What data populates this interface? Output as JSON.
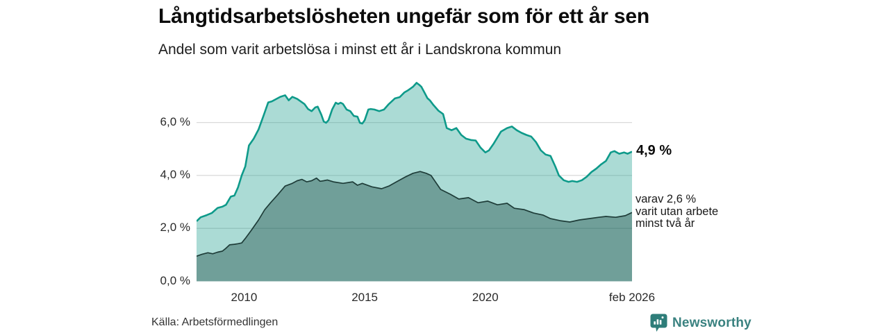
{
  "header": {
    "title": "Långtidsarbetslösheten ungefär som för ett år sen",
    "subtitle": "Andel som varit arbetslösa i minst ett år i Landskrona kommun"
  },
  "annotations": {
    "value_primary": "4,9 %",
    "value_primary_series_value": 4.9,
    "value_secondary_lines": [
      "varav 2,6 %",
      "varit utan arbete",
      "minst två år"
    ],
    "value_secondary_series_value": 2.6
  },
  "footer": {
    "source": "Källa: Arbetsförmedlingen",
    "brand": "Newsworthy"
  },
  "colors": {
    "line_primary": "#0E9A8A",
    "fill_primary": "rgba(22,154,138,0.36)",
    "line_secondary": "#1E3C38",
    "fill_secondary": "rgba(15,61,56,0.38)",
    "gridline": "#D9D9D9",
    "brand_teal": "#2E7D79"
  },
  "chart_data": {
    "type": "area",
    "title": "Långtidsarbetslösheten ungefär som för ett år sen",
    "subtitle": "Andel som varit arbetslösa i minst ett år i Landskrona kommun",
    "unit": "%",
    "grid": "horizontal",
    "legend_position": "right-annotations",
    "x_domain": [
      2008.03,
      2026.08
    ],
    "y_domain": [
      0,
      7.8
    ],
    "x_ticks": [
      {
        "value": 2010,
        "label": "2010"
      },
      {
        "value": 2015,
        "label": "2015"
      },
      {
        "value": 2020,
        "label": "2020"
      },
      {
        "value": 2026.08,
        "label": "feb 2026"
      }
    ],
    "y_ticks": [
      {
        "value": 0,
        "label": "0,0 %"
      },
      {
        "value": 2,
        "label": "2,0 %"
      },
      {
        "value": 4,
        "label": "4,0 %"
      },
      {
        "value": 6,
        "label": "6,0 %"
      }
    ],
    "series": [
      {
        "name": "Andel arbetslösa minst ett år",
        "end_label": "4,9 %",
        "end_value": 4.9,
        "points": [
          [
            2008.03,
            2.27
          ],
          [
            2008.2,
            2.42
          ],
          [
            2008.45,
            2.5
          ],
          [
            2008.66,
            2.58
          ],
          [
            2008.9,
            2.77
          ],
          [
            2009.1,
            2.82
          ],
          [
            2009.25,
            2.89
          ],
          [
            2009.45,
            3.2
          ],
          [
            2009.6,
            3.24
          ],
          [
            2009.75,
            3.55
          ],
          [
            2009.9,
            4.0
          ],
          [
            2010.05,
            4.34
          ],
          [
            2010.2,
            5.13
          ],
          [
            2010.4,
            5.39
          ],
          [
            2010.6,
            5.74
          ],
          [
            2010.8,
            6.24
          ],
          [
            2011.0,
            6.76
          ],
          [
            2011.15,
            6.8
          ],
          [
            2011.5,
            6.97
          ],
          [
            2011.7,
            7.03
          ],
          [
            2011.85,
            6.84
          ],
          [
            2012.0,
            6.97
          ],
          [
            2012.2,
            6.89
          ],
          [
            2012.5,
            6.7
          ],
          [
            2012.65,
            6.51
          ],
          [
            2012.8,
            6.43
          ],
          [
            2012.95,
            6.57
          ],
          [
            2013.05,
            6.6
          ],
          [
            2013.2,
            6.3
          ],
          [
            2013.3,
            6.04
          ],
          [
            2013.4,
            5.99
          ],
          [
            2013.5,
            6.09
          ],
          [
            2013.65,
            6.49
          ],
          [
            2013.8,
            6.75
          ],
          [
            2013.9,
            6.7
          ],
          [
            2014.0,
            6.75
          ],
          [
            2014.1,
            6.7
          ],
          [
            2014.25,
            6.49
          ],
          [
            2014.4,
            6.43
          ],
          [
            2014.55,
            6.25
          ],
          [
            2014.7,
            6.22
          ],
          [
            2014.8,
            5.99
          ],
          [
            2014.9,
            5.96
          ],
          [
            2015.0,
            6.09
          ],
          [
            2015.15,
            6.49
          ],
          [
            2015.25,
            6.51
          ],
          [
            2015.4,
            6.49
          ],
          [
            2015.6,
            6.43
          ],
          [
            2015.8,
            6.49
          ],
          [
            2016.0,
            6.7
          ],
          [
            2016.1,
            6.78
          ],
          [
            2016.25,
            6.91
          ],
          [
            2016.45,
            6.96
          ],
          [
            2016.65,
            7.14
          ],
          [
            2016.8,
            7.22
          ],
          [
            2017.0,
            7.35
          ],
          [
            2017.15,
            7.5
          ],
          [
            2017.25,
            7.43
          ],
          [
            2017.35,
            7.35
          ],
          [
            2017.5,
            7.09
          ],
          [
            2017.6,
            6.92
          ],
          [
            2017.7,
            6.84
          ],
          [
            2017.85,
            6.66
          ],
          [
            2018.05,
            6.45
          ],
          [
            2018.25,
            6.32
          ],
          [
            2018.4,
            5.79
          ],
          [
            2018.6,
            5.71
          ],
          [
            2018.8,
            5.79
          ],
          [
            2019.0,
            5.53
          ],
          [
            2019.2,
            5.39
          ],
          [
            2019.4,
            5.34
          ],
          [
            2019.6,
            5.32
          ],
          [
            2019.8,
            5.05
          ],
          [
            2020.0,
            4.87
          ],
          [
            2020.15,
            4.95
          ],
          [
            2020.35,
            5.21
          ],
          [
            2020.65,
            5.66
          ],
          [
            2020.9,
            5.79
          ],
          [
            2021.1,
            5.85
          ],
          [
            2021.3,
            5.71
          ],
          [
            2021.5,
            5.61
          ],
          [
            2021.7,
            5.53
          ],
          [
            2021.9,
            5.47
          ],
          [
            2022.1,
            5.26
          ],
          [
            2022.3,
            4.95
          ],
          [
            2022.5,
            4.79
          ],
          [
            2022.7,
            4.74
          ],
          [
            2022.9,
            4.34
          ],
          [
            2023.05,
            4.0
          ],
          [
            2023.25,
            3.82
          ],
          [
            2023.45,
            3.76
          ],
          [
            2023.6,
            3.79
          ],
          [
            2023.8,
            3.76
          ],
          [
            2024.0,
            3.82
          ],
          [
            2024.2,
            3.95
          ],
          [
            2024.4,
            4.13
          ],
          [
            2024.6,
            4.26
          ],
          [
            2024.8,
            4.42
          ],
          [
            2025.0,
            4.55
          ],
          [
            2025.2,
            4.87
          ],
          [
            2025.35,
            4.92
          ],
          [
            2025.55,
            4.82
          ],
          [
            2025.75,
            4.87
          ],
          [
            2025.9,
            4.82
          ],
          [
            2026.08,
            4.9
          ]
        ]
      },
      {
        "name": "varav utan arbete minst två år",
        "end_label": "varav 2,6 % varit utan arbete minst två år",
        "end_value": 2.6,
        "points": [
          [
            2008.03,
            0.95
          ],
          [
            2008.25,
            1.02
          ],
          [
            2008.5,
            1.08
          ],
          [
            2008.7,
            1.04
          ],
          [
            2008.9,
            1.1
          ],
          [
            2009.1,
            1.14
          ],
          [
            2009.25,
            1.25
          ],
          [
            2009.4,
            1.38
          ],
          [
            2009.6,
            1.4
          ],
          [
            2009.75,
            1.42
          ],
          [
            2009.9,
            1.45
          ],
          [
            2010.05,
            1.62
          ],
          [
            2010.3,
            1.93
          ],
          [
            2010.6,
            2.32
          ],
          [
            2010.85,
            2.7
          ],
          [
            2011.1,
            2.97
          ],
          [
            2011.4,
            3.28
          ],
          [
            2011.7,
            3.6
          ],
          [
            2012.0,
            3.7
          ],
          [
            2012.2,
            3.8
          ],
          [
            2012.4,
            3.85
          ],
          [
            2012.6,
            3.76
          ],
          [
            2012.8,
            3.8
          ],
          [
            2013.0,
            3.9
          ],
          [
            2013.15,
            3.78
          ],
          [
            2013.3,
            3.8
          ],
          [
            2013.45,
            3.83
          ],
          [
            2013.7,
            3.76
          ],
          [
            2014.1,
            3.7
          ],
          [
            2014.5,
            3.76
          ],
          [
            2014.7,
            3.63
          ],
          [
            2014.9,
            3.7
          ],
          [
            2015.3,
            3.57
          ],
          [
            2015.7,
            3.5
          ],
          [
            2016.0,
            3.6
          ],
          [
            2016.3,
            3.75
          ],
          [
            2016.7,
            3.95
          ],
          [
            2017.0,
            4.08
          ],
          [
            2017.3,
            4.15
          ],
          [
            2017.55,
            4.08
          ],
          [
            2017.75,
            4.0
          ],
          [
            2018.15,
            3.47
          ],
          [
            2018.55,
            3.29
          ],
          [
            2018.9,
            3.11
          ],
          [
            2019.3,
            3.16
          ],
          [
            2019.7,
            2.97
          ],
          [
            2020.1,
            3.03
          ],
          [
            2020.5,
            2.89
          ],
          [
            2020.9,
            2.95
          ],
          [
            2021.2,
            2.76
          ],
          [
            2021.6,
            2.71
          ],
          [
            2022.0,
            2.58
          ],
          [
            2022.4,
            2.5
          ],
          [
            2022.7,
            2.37
          ],
          [
            2023.1,
            2.29
          ],
          [
            2023.5,
            2.24
          ],
          [
            2023.9,
            2.32
          ],
          [
            2024.3,
            2.37
          ],
          [
            2024.7,
            2.42
          ],
          [
            2025.0,
            2.45
          ],
          [
            2025.4,
            2.42
          ],
          [
            2025.8,
            2.48
          ],
          [
            2026.08,
            2.6
          ]
        ]
      }
    ]
  }
}
